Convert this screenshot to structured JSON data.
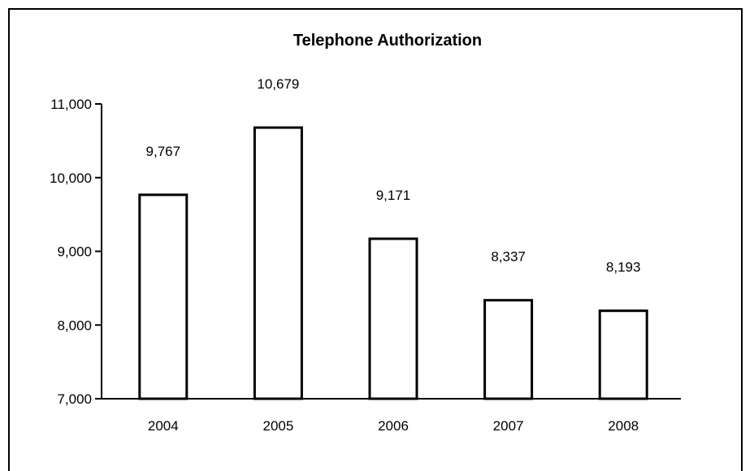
{
  "chart_data": {
    "type": "bar",
    "title": "Telephone Authorization",
    "xlabel": "",
    "ylabel": "",
    "categories": [
      "2004",
      "2005",
      "2006",
      "2007",
      "2008"
    ],
    "values": [
      9767,
      10679,
      9171,
      8337,
      8193
    ],
    "data_labels": [
      "9,767",
      "10,679",
      "9,171",
      "8,337",
      "8,193"
    ],
    "ylim": [
      7000,
      11000
    ],
    "y_ticks": [
      7000,
      8000,
      9000,
      10000,
      11000
    ],
    "y_tick_labels": [
      "7,000",
      "8,000",
      "9,000",
      "10,000",
      "11,000"
    ],
    "grid": false,
    "legend": "none",
    "bar_fill": "#ffffff",
    "bar_stroke": "#000000"
  }
}
